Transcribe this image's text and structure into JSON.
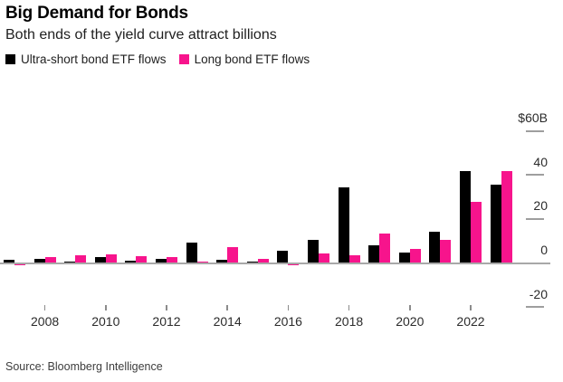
{
  "header": {
    "title": "Big Demand for Bonds",
    "subtitle": "Both ends of the yield curve attract billions"
  },
  "legend": [
    {
      "label": "Ultra-short bond ETF flows",
      "color": "#000000"
    },
    {
      "label": "Long bond ETF flows",
      "color": "#f7148c"
    }
  ],
  "chart_data": {
    "type": "bar",
    "title": "Big Demand for Bonds",
    "subtitle": "Both ends of the yield curve attract billions",
    "unit": "billions of US dollars",
    "categories": [
      "2007",
      "2008",
      "2009",
      "2010",
      "2011",
      "2012",
      "2013",
      "2014",
      "2015",
      "2016",
      "2017",
      "2018",
      "2019",
      "2020",
      "2021",
      "2022",
      "2023"
    ],
    "series": [
      {
        "name": "Ultra-short bond ETF flows",
        "color": "#000000",
        "values": [
          1.2,
          1.6,
          0.5,
          2.4,
          0.8,
          1.6,
          9,
          1.2,
          0.5,
          5.3,
          10.2,
          34,
          7.8,
          4.5,
          14,
          41.5,
          35.5
        ]
      },
      {
        "name": "Long bond ETF flows",
        "color": "#f7148c",
        "values": [
          -0.8,
          2.5,
          3.3,
          3.7,
          2.9,
          2.5,
          0.4,
          7,
          1.6,
          -0.5,
          4.1,
          3.3,
          13,
          6.1,
          10.2,
          27.7,
          41.5
        ]
      }
    ],
    "y_axis": {
      "side": "right",
      "range": [
        -25,
        75
      ],
      "ticks": [
        {
          "label": "$60B",
          "value": 60
        },
        {
          "label": "40",
          "value": 40
        },
        {
          "label": "20",
          "value": 20
        },
        {
          "label": "0",
          "value": 0
        },
        {
          "label": "-20",
          "value": -20
        }
      ]
    },
    "x_axis": {
      "tick_labels": [
        "2008",
        "2010",
        "2012",
        "2014",
        "2016",
        "2018",
        "2020",
        "2022"
      ]
    },
    "grid": false,
    "legend_position": "top-left"
  },
  "footer": {
    "source": "Source: Bloomberg Intelligence"
  },
  "colors": {
    "ultra_short": "#000000",
    "long_bond": "#f7148c",
    "axis": "#a8a8a8",
    "text": "#1f1f1f"
  }
}
